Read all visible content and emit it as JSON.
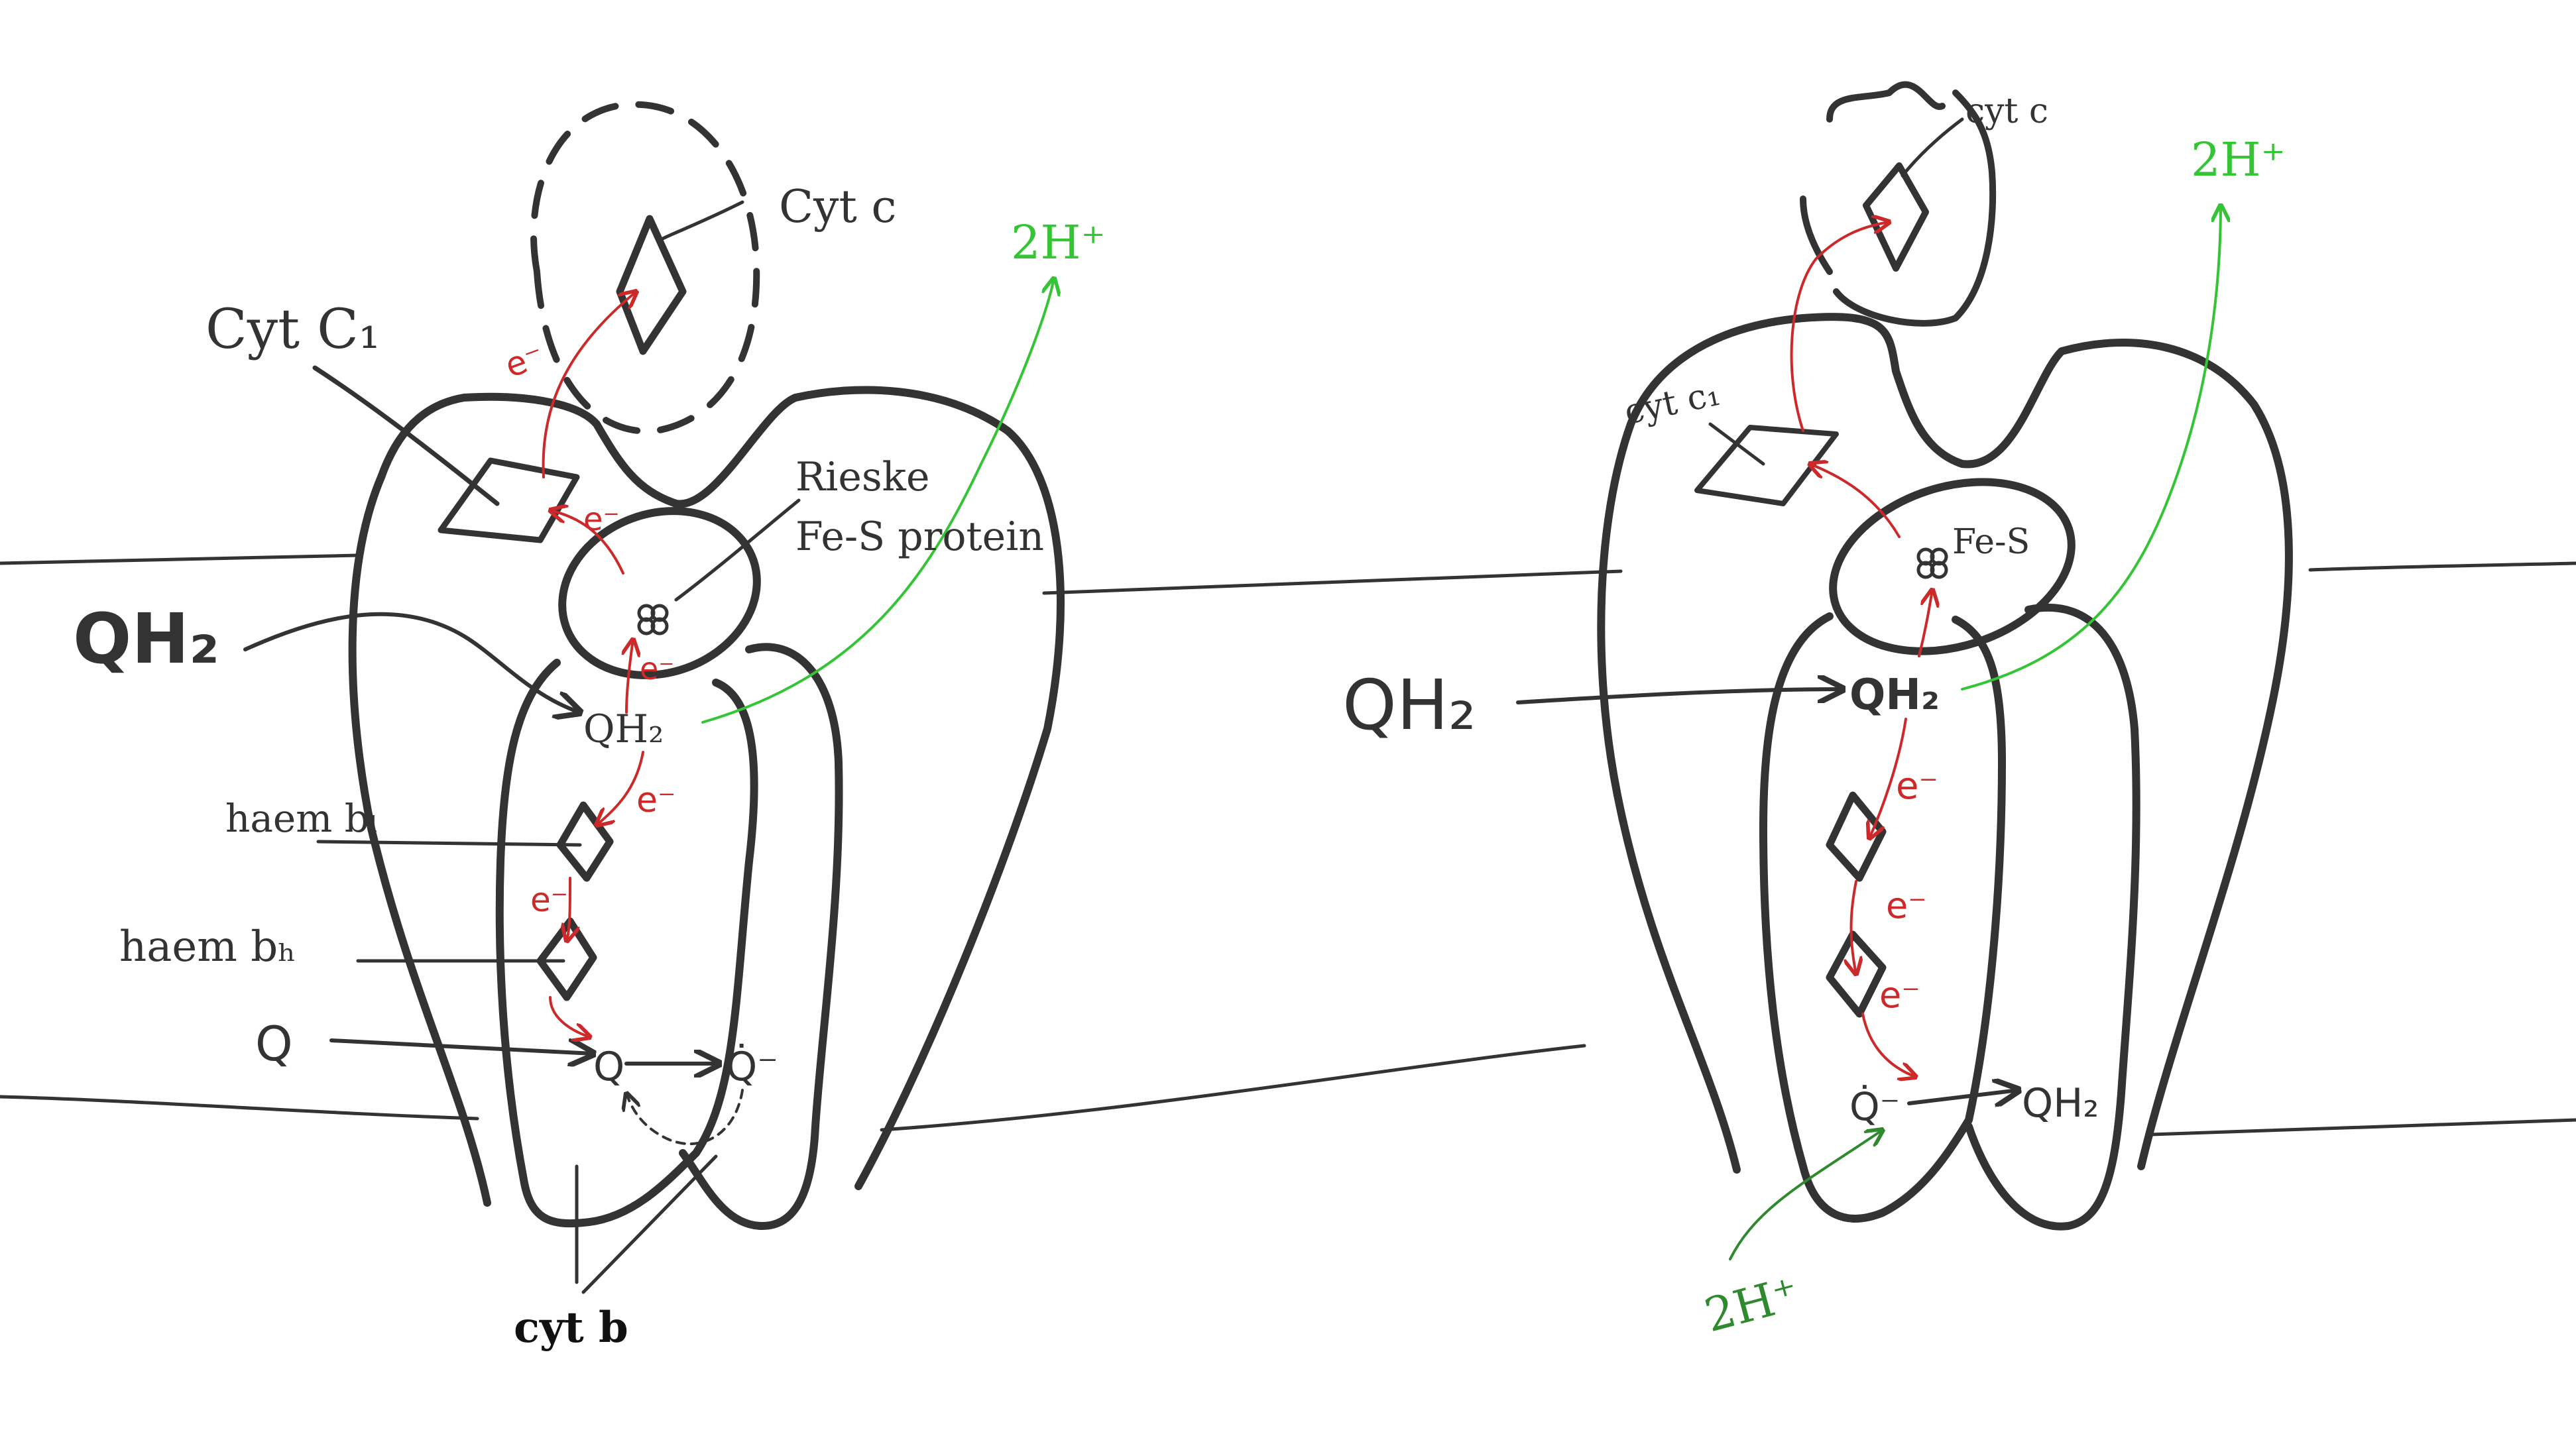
{
  "colors": {
    "ink": "#333333",
    "electron": "#cc2a2a",
    "proton_out": "#35c435",
    "proton_in": "#2f8a2f",
    "background": "#ffffff"
  },
  "left_panel": {
    "cyt_c": "Cyt c",
    "cyt_c1": "Cyt C₁",
    "rieske_line1": "Rieske",
    "rieske_line2": "Fe-S protein",
    "proton_out": "2H⁺",
    "qh2_outer": "QH₂",
    "qh2_site": "QH₂",
    "haem_bl": "haem bₗ",
    "haem_bh": "haem bₕ",
    "q_outer": "Q",
    "q_site": "Q",
    "q_radical": "Q̇⁻",
    "cyt_b": "cyt b",
    "electron_labels": [
      "e⁻",
      "e⁻",
      "e⁻",
      "e⁻",
      "e⁻"
    ]
  },
  "right_panel": {
    "cyt_c": "cyt c",
    "cyt_c1": "cyt c₁",
    "fe_s": "Fe-S",
    "proton_out": "2H⁺",
    "qh2_outer": "QH₂",
    "qh2_site": "QH₂",
    "q_radical": "Q̇⁻",
    "qh2_product": "QH₂",
    "proton_in": "2H⁺",
    "electron_labels": [
      "e⁻",
      "e⁻",
      "e⁻"
    ]
  }
}
